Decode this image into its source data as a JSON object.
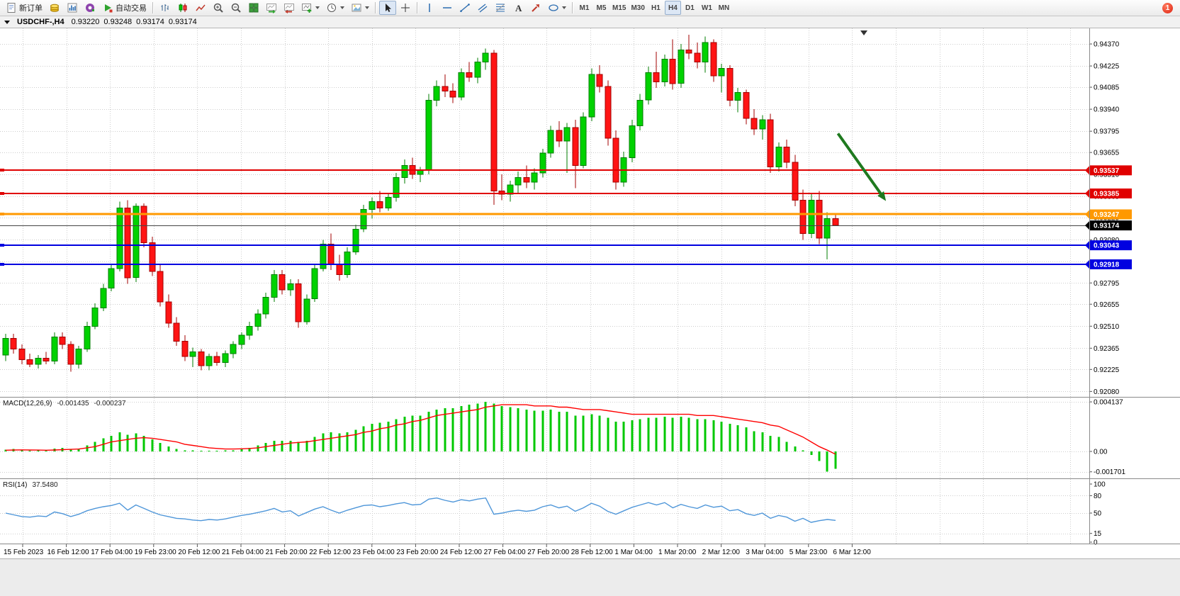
{
  "toolbar": {
    "new_order_label": "新订单",
    "auto_trading_label": "自动交易",
    "timeframes": [
      "M1",
      "M5",
      "M15",
      "M30",
      "H1",
      "H4",
      "D1",
      "W1",
      "MN"
    ],
    "active_timeframe": "H4",
    "notification_badge": "1",
    "icon_names": [
      "new-order-icon",
      "gold-icon",
      "chart-window-icon",
      "market-watch-icon",
      "auto-trading-icon",
      "bar-chart-icon",
      "candlestick-icon",
      "line-chart-icon",
      "zoom-in-icon",
      "zoom-out-icon",
      "tile-windows-icon",
      "auto-scroll-icon",
      "chart-shift-icon",
      "indicators-icon",
      "periods-icon",
      "templates-icon",
      "cursor-icon",
      "crosshair-icon",
      "vertical-line-icon",
      "horizontal-line-icon",
      "trendline-icon",
      "channel-icon",
      "fibonacci-icon",
      "text-tool-icon",
      "arrows-tool-icon",
      "shapes-icon"
    ]
  },
  "chart": {
    "title": "USDCHF-,H4",
    "open": "0.93220",
    "high": "0.93248",
    "low": "0.93174",
    "close": "0.93174"
  },
  "indicators": {
    "macd_name": "MACD(12,26,9)",
    "macd_value": "-0.001435",
    "macd_signal_value": "-0.000237",
    "rsi_name": "RSI(14)",
    "rsi_value": "37.5480"
  },
  "chart_data": {
    "type": "candlestick",
    "symbol": "USDCHF-",
    "timeframe": "H4",
    "colors": {
      "up": "#00D200",
      "up_border": "#007E00",
      "down": "#FF1414",
      "down_border": "#A30000",
      "grid": "#CDCDCD",
      "macd_bar": "#00C800",
      "macd_signal": "#FF0000",
      "rsi_line": "#4E96D9",
      "arrow": "#1F7A1F"
    },
    "y_axis": {
      "max": 0.94473,
      "min": 0.92049,
      "labels": [
        "0.94370",
        "0.94225",
        "0.94085",
        "0.93940",
        "0.93795",
        "0.93655",
        "0.93510",
        "0.93365",
        "0.93225",
        "0.93080",
        "0.92935",
        "0.92795",
        "0.92655",
        "0.92510",
        "0.92365",
        "0.92225",
        "0.92080"
      ]
    },
    "x_axis": {
      "labels": [
        "15 Feb 2023",
        "16 Feb 12:00",
        "17 Feb 04:00",
        "19 Feb 23:00",
        "20 Feb 12:00",
        "21 Feb 04:00",
        "21 Feb 20:00",
        "22 Feb 12:00",
        "23 Feb 04:00",
        "23 Feb 20:00",
        "24 Feb 12:00",
        "27 Feb 04:00",
        "27 Feb 20:00",
        "28 Feb 12:00",
        "1 Mar 04:00",
        "1 Mar 20:00",
        "2 Mar 12:00",
        "3 Mar 04:00",
        "5 Mar 23:00",
        "6 Mar 12:00"
      ]
    },
    "levels": [
      {
        "price": 0.93537,
        "color": "#E00000",
        "width": 2,
        "label": "0.93537"
      },
      {
        "price": 0.93385,
        "color": "#E00000",
        "width": 2,
        "label": "0.93385"
      },
      {
        "price": 0.93247,
        "color": "#FF9900",
        "width": 3,
        "label": "0.93247"
      },
      {
        "price": 0.93043,
        "color": "#0000E0",
        "width": 2,
        "label": "0.93043"
      },
      {
        "price": 0.92918,
        "color": "#0000E0",
        "width": 2,
        "label": "0.92918"
      }
    ],
    "current_price": {
      "price": 0.93174,
      "label": "0.93174"
    },
    "arrow": {
      "from_i": 102.3,
      "from_price": 0.9378,
      "to_i": 108.2,
      "to_price": 0.93335
    },
    "candles": [
      [
        0.9232,
        0.9246,
        0.9228,
        0.9243
      ],
      [
        0.9243,
        0.9246,
        0.9233,
        0.9236
      ],
      [
        0.9236,
        0.9239,
        0.9226,
        0.9229
      ],
      [
        0.9229,
        0.9233,
        0.9224,
        0.9226
      ],
      [
        0.9226,
        0.9232,
        0.9223,
        0.923
      ],
      [
        0.923,
        0.9234,
        0.9226,
        0.9228
      ],
      [
        0.9228,
        0.9247,
        0.9226,
        0.9244
      ],
      [
        0.9244,
        0.9247,
        0.9236,
        0.9239
      ],
      [
        0.9239,
        0.9241,
        0.9221,
        0.9226
      ],
      [
        0.9226,
        0.9238,
        0.9223,
        0.9236
      ],
      [
        0.9236,
        0.9254,
        0.9234,
        0.9251
      ],
      [
        0.9251,
        0.9266,
        0.9249,
        0.9263
      ],
      [
        0.9263,
        0.9279,
        0.9261,
        0.9276
      ],
      [
        0.9276,
        0.9292,
        0.9274,
        0.9289
      ],
      [
        0.9289,
        0.9333,
        0.9287,
        0.9329
      ],
      [
        0.9329,
        0.9334,
        0.9279,
        0.9283
      ],
      [
        0.9283,
        0.9332,
        0.928,
        0.933
      ],
      [
        0.933,
        0.9332,
        0.9303,
        0.9306
      ],
      [
        0.9306,
        0.931,
        0.9284,
        0.9287
      ],
      [
        0.9287,
        0.9292,
        0.9264,
        0.9267
      ],
      [
        0.9267,
        0.9272,
        0.925,
        0.9253
      ],
      [
        0.9253,
        0.9257,
        0.9238,
        0.9241
      ],
      [
        0.9241,
        0.9245,
        0.9228,
        0.9231
      ],
      [
        0.9231,
        0.9237,
        0.9224,
        0.9234
      ],
      [
        0.9234,
        0.9236,
        0.9222,
        0.9225
      ],
      [
        0.9225,
        0.9233,
        0.9222,
        0.9231
      ],
      [
        0.9231,
        0.9234,
        0.9225,
        0.9227
      ],
      [
        0.9227,
        0.9235,
        0.9224,
        0.9233
      ],
      [
        0.9233,
        0.9241,
        0.923,
        0.9239
      ],
      [
        0.9239,
        0.9247,
        0.9236,
        0.9245
      ],
      [
        0.9245,
        0.9254,
        0.9242,
        0.9251
      ],
      [
        0.9251,
        0.9262,
        0.9248,
        0.9259
      ],
      [
        0.9259,
        0.9273,
        0.9256,
        0.927
      ],
      [
        0.927,
        0.9288,
        0.9267,
        0.9285
      ],
      [
        0.9285,
        0.9288,
        0.9272,
        0.9275
      ],
      [
        0.9275,
        0.9282,
        0.9271,
        0.9279
      ],
      [
        0.9279,
        0.9282,
        0.925,
        0.9254
      ],
      [
        0.9254,
        0.9272,
        0.9252,
        0.9269
      ],
      [
        0.9269,
        0.9292,
        0.9267,
        0.9289
      ],
      [
        0.9289,
        0.9308,
        0.9287,
        0.9305
      ],
      [
        0.9305,
        0.9312,
        0.9288,
        0.9292
      ],
      [
        0.9292,
        0.9298,
        0.9281,
        0.9285
      ],
      [
        0.9285,
        0.9303,
        0.9283,
        0.93
      ],
      [
        0.93,
        0.9318,
        0.9298,
        0.9315
      ],
      [
        0.9315,
        0.9331,
        0.9313,
        0.9328
      ],
      [
        0.9328,
        0.9336,
        0.9322,
        0.9333
      ],
      [
        0.9333,
        0.934,
        0.9326,
        0.9329
      ],
      [
        0.9329,
        0.9339,
        0.9327,
        0.9336
      ],
      [
        0.9336,
        0.9352,
        0.9333,
        0.9349
      ],
      [
        0.9349,
        0.9361,
        0.9345,
        0.9357
      ],
      [
        0.9357,
        0.9362,
        0.9348,
        0.9351
      ],
      [
        0.9351,
        0.9356,
        0.9346,
        0.9354
      ],
      [
        0.9354,
        0.9404,
        0.9351,
        0.94
      ],
      [
        0.94,
        0.9413,
        0.9396,
        0.9409
      ],
      [
        0.9409,
        0.9417,
        0.9402,
        0.9406
      ],
      [
        0.9406,
        0.9411,
        0.9398,
        0.9402
      ],
      [
        0.9402,
        0.9421,
        0.94,
        0.9418
      ],
      [
        0.9418,
        0.9425,
        0.9412,
        0.9415
      ],
      [
        0.9415,
        0.9428,
        0.9411,
        0.9425
      ],
      [
        0.9425,
        0.9434,
        0.942,
        0.9431
      ],
      [
        0.9431,
        0.9433,
        0.9331,
        0.934
      ],
      [
        0.934,
        0.9351,
        0.9334,
        0.9338
      ],
      [
        0.9338,
        0.9347,
        0.9333,
        0.9344
      ],
      [
        0.9344,
        0.9353,
        0.9339,
        0.9349
      ],
      [
        0.9349,
        0.9357,
        0.9342,
        0.9346
      ],
      [
        0.9346,
        0.9355,
        0.9341,
        0.9352
      ],
      [
        0.9352,
        0.9368,
        0.9349,
        0.9365
      ],
      [
        0.9365,
        0.9383,
        0.9362,
        0.938
      ],
      [
        0.938,
        0.9386,
        0.9369,
        0.9373
      ],
      [
        0.9373,
        0.9385,
        0.9352,
        0.9382
      ],
      [
        0.9382,
        0.9387,
        0.9342,
        0.9357
      ],
      [
        0.9357,
        0.9392,
        0.9355,
        0.9389
      ],
      [
        0.9389,
        0.9421,
        0.9386,
        0.9417
      ],
      [
        0.9417,
        0.9423,
        0.9405,
        0.9409
      ],
      [
        0.9409,
        0.9413,
        0.937,
        0.9375
      ],
      [
        0.9375,
        0.938,
        0.9341,
        0.9346
      ],
      [
        0.9346,
        0.9366,
        0.9343,
        0.9362
      ],
      [
        0.9362,
        0.9387,
        0.9359,
        0.9383
      ],
      [
        0.9383,
        0.9404,
        0.938,
        0.94
      ],
      [
        0.94,
        0.9422,
        0.9397,
        0.9418
      ],
      [
        0.9418,
        0.9432,
        0.9408,
        0.9412
      ],
      [
        0.9412,
        0.943,
        0.9409,
        0.9427
      ],
      [
        0.9427,
        0.944,
        0.9407,
        0.9411
      ],
      [
        0.9411,
        0.9437,
        0.9408,
        0.9433
      ],
      [
        0.9433,
        0.9443,
        0.9427,
        0.9431
      ],
      [
        0.9431,
        0.9438,
        0.9421,
        0.9425
      ],
      [
        0.9425,
        0.9442,
        0.9418,
        0.9438
      ],
      [
        0.9438,
        0.944,
        0.9412,
        0.9416
      ],
      [
        0.9416,
        0.9424,
        0.9405,
        0.9421
      ],
      [
        0.9421,
        0.9423,
        0.9396,
        0.94
      ],
      [
        0.94,
        0.9408,
        0.9392,
        0.9405
      ],
      [
        0.9405,
        0.9407,
        0.9384,
        0.9388
      ],
      [
        0.9388,
        0.9394,
        0.9377,
        0.9381
      ],
      [
        0.9381,
        0.939,
        0.9374,
        0.9387
      ],
      [
        0.9387,
        0.9391,
        0.9352,
        0.9356
      ],
      [
        0.9356,
        0.9372,
        0.9353,
        0.9369
      ],
      [
        0.9369,
        0.9374,
        0.9355,
        0.9359
      ],
      [
        0.9359,
        0.9364,
        0.933,
        0.9334
      ],
      [
        0.9334,
        0.9341,
        0.9308,
        0.9312
      ],
      [
        0.9312,
        0.9338,
        0.9309,
        0.9334
      ],
      [
        0.9334,
        0.934,
        0.9305,
        0.9309
      ],
      [
        0.9309,
        0.9326,
        0.9295,
        0.9322
      ],
      [
        0.9322,
        0.93248,
        0.93174,
        0.93174
      ]
    ],
    "macd": {
      "axis_labels": [
        "0.004137",
        "0.00",
        "-0.001701"
      ],
      "histogram": [
        0.00015,
        0.0002,
        0.0001,
        5e-05,
        8e-05,
        0.0001,
        0.00025,
        0.0003,
        0.0002,
        0.00025,
        0.0005,
        0.0008,
        0.0011,
        0.0013,
        0.0016,
        0.0014,
        0.0015,
        0.0013,
        0.001,
        0.0007,
        0.0004,
        0.0002,
        0.0001,
        8e-05,
        5e-05,
        6e-05,
        5e-05,
        8e-05,
        0.0001,
        0.0002,
        0.0003,
        0.0005,
        0.0007,
        0.0009,
        0.0009,
        0.0009,
        0.0008,
        0.0009,
        0.0012,
        0.0015,
        0.0016,
        0.0015,
        0.0016,
        0.0018,
        0.0021,
        0.0023,
        0.0024,
        0.0025,
        0.0027,
        0.0029,
        0.003,
        0.003,
        0.0033,
        0.0035,
        0.0036,
        0.0036,
        0.0038,
        0.0039,
        0.004,
        0.004137,
        0.004,
        0.0038,
        0.0037,
        0.0036,
        0.0035,
        0.0034,
        0.0034,
        0.0035,
        0.0033,
        0.0033,
        0.003,
        0.003,
        0.0031,
        0.003,
        0.0028,
        0.0025,
        0.0025,
        0.0026,
        0.0027,
        0.0028,
        0.0028,
        0.0029,
        0.0028,
        0.0029,
        0.0028,
        0.0027,
        0.0027,
        0.0026,
        0.0025,
        0.0023,
        0.0022,
        0.002,
        0.0017,
        0.0016,
        0.0013,
        0.0012,
        0.0008,
        0.0004,
        0.0001,
        -0.0003,
        -0.0008,
        -0.001701,
        -0.001435
      ],
      "signal": [
        0.0001,
        0.00012,
        0.00013,
        0.00012,
        0.00011,
        0.0001,
        0.00012,
        0.00015,
        0.00017,
        0.0002,
        0.0003,
        0.0004,
        0.0006,
        0.0008,
        0.0009,
        0.001,
        0.0011,
        0.00115,
        0.0011,
        0.001,
        0.0009,
        0.0008,
        0.0006,
        0.0005,
        0.0004,
        0.0003,
        0.00025,
        0.0002,
        0.0002,
        0.00022,
        0.00025,
        0.0003,
        0.0004,
        0.0005,
        0.0006,
        0.0007,
        0.00075,
        0.0008,
        0.0009,
        0.001,
        0.0011,
        0.0012,
        0.0013,
        0.0014,
        0.0016,
        0.0017,
        0.0019,
        0.002,
        0.0022,
        0.0023,
        0.0025,
        0.0026,
        0.0028,
        0.003,
        0.0031,
        0.0032,
        0.0033,
        0.0034,
        0.0035,
        0.0037,
        0.0038,
        0.0039,
        0.0039,
        0.0039,
        0.0039,
        0.0038,
        0.0038,
        0.0038,
        0.0037,
        0.0037,
        0.0036,
        0.0035,
        0.0035,
        0.0035,
        0.0034,
        0.0033,
        0.0032,
        0.0031,
        0.0031,
        0.0031,
        0.0031,
        0.0031,
        0.0031,
        0.0031,
        0.0031,
        0.003,
        0.003,
        0.003,
        0.0029,
        0.0028,
        0.0027,
        0.0026,
        0.0025,
        0.0024,
        0.0022,
        0.0021,
        0.0018,
        0.0015,
        0.0012,
        0.0008,
        0.0004,
        0.0001,
        -0.000237
      ]
    },
    "rsi": {
      "axis_labels": [
        "100",
        "80",
        "50",
        "15",
        "0"
      ],
      "levels": [
        80,
        50,
        15
      ],
      "values": [
        50,
        47,
        44,
        43,
        45,
        44,
        52,
        49,
        44,
        48,
        54,
        58,
        61,
        63,
        67,
        55,
        64,
        58,
        52,
        47,
        44,
        41,
        40,
        38,
        37,
        39,
        38,
        40,
        43,
        46,
        48,
        51,
        54,
        58,
        52,
        54,
        45,
        51,
        57,
        61,
        55,
        50,
        55,
        59,
        63,
        64,
        61,
        63,
        66,
        68,
        64,
        65,
        74,
        76,
        72,
        69,
        73,
        71,
        74,
        76,
        48,
        50,
        53,
        55,
        53,
        55,
        61,
        64,
        59,
        62,
        53,
        59,
        67,
        62,
        53,
        48,
        54,
        60,
        64,
        68,
        64,
        68,
        59,
        65,
        61,
        58,
        64,
        60,
        62,
        54,
        56,
        49,
        46,
        50,
        41,
        46,
        43,
        36,
        41,
        34,
        37,
        39,
        37.5
      ]
    }
  }
}
